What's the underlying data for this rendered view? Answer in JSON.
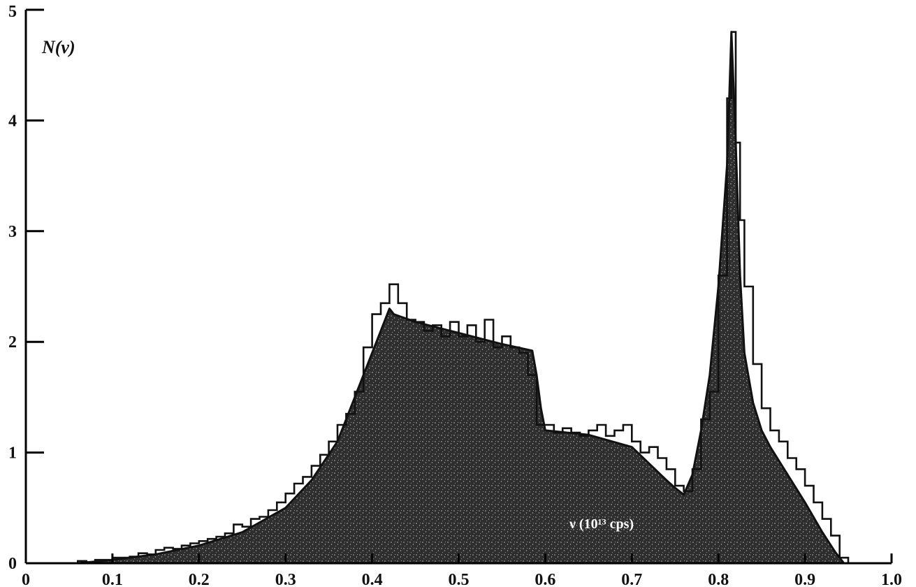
{
  "chart_data": {
    "type": "area",
    "ylabel": "N(ν)",
    "xlabel": "ν (10¹³ cps)",
    "xlim": [
      0,
      1.0
    ],
    "ylim": [
      0,
      5
    ],
    "x_ticks": [
      {
        "value": 0,
        "label": "0"
      },
      {
        "value": 0.1,
        "label": "0.1"
      },
      {
        "value": 0.2,
        "label": "0.2"
      },
      {
        "value": 0.3,
        "label": "0.3"
      },
      {
        "value": 0.4,
        "label": "0.4"
      },
      {
        "value": 0.5,
        "label": "0.5"
      },
      {
        "value": 0.6,
        "label": "0.6"
      },
      {
        "value": 0.7,
        "label": "0.7"
      },
      {
        "value": 0.8,
        "label": "0.8"
      },
      {
        "value": 0.9,
        "label": "0.9"
      },
      {
        "value": 1.0,
        "label": "1.0"
      }
    ],
    "y_ticks": [
      {
        "value": 0,
        "label": "0"
      },
      {
        "value": 1,
        "label": "1"
      },
      {
        "value": 2,
        "label": "2"
      },
      {
        "value": 3,
        "label": "3"
      },
      {
        "value": 4,
        "label": "4"
      },
      {
        "value": 5,
        "label": "5"
      }
    ],
    "grid": false,
    "series": [
      {
        "kind": "smooth-curve-filled",
        "fill": "#3a3a3a",
        "x": [
          0.06,
          0.1,
          0.15,
          0.2,
          0.25,
          0.3,
          0.33,
          0.36,
          0.38,
          0.4,
          0.41,
          0.42,
          0.425,
          0.45,
          0.5,
          0.55,
          0.585,
          0.59,
          0.595,
          0.6,
          0.65,
          0.7,
          0.72,
          0.74,
          0.75,
          0.76,
          0.77,
          0.78,
          0.79,
          0.8,
          0.81,
          0.815,
          0.82,
          0.825,
          0.83,
          0.84,
          0.85,
          0.86,
          0.88,
          0.9,
          0.92,
          0.935,
          0.945
        ],
        "y": [
          0.0,
          0.03,
          0.08,
          0.16,
          0.28,
          0.5,
          0.75,
          1.1,
          1.5,
          1.9,
          2.1,
          2.3,
          2.25,
          2.18,
          2.08,
          1.98,
          1.92,
          1.7,
          1.4,
          1.2,
          1.16,
          1.05,
          0.9,
          0.75,
          0.68,
          0.62,
          0.8,
          1.2,
          1.7,
          2.5,
          3.6,
          4.8,
          3.8,
          2.6,
          1.9,
          1.45,
          1.2,
          1.05,
          0.8,
          0.55,
          0.28,
          0.1,
          0.0
        ]
      },
      {
        "kind": "histogram-step",
        "x": [
          0.06,
          0.07,
          0.08,
          0.09,
          0.1,
          0.11,
          0.12,
          0.13,
          0.14,
          0.15,
          0.16,
          0.17,
          0.18,
          0.19,
          0.2,
          0.21,
          0.22,
          0.23,
          0.24,
          0.25,
          0.26,
          0.27,
          0.28,
          0.29,
          0.3,
          0.31,
          0.32,
          0.33,
          0.34,
          0.35,
          0.36,
          0.37,
          0.38,
          0.39,
          0.4,
          0.41,
          0.42,
          0.43,
          0.44,
          0.45,
          0.46,
          0.47,
          0.48,
          0.49,
          0.5,
          0.51,
          0.52,
          0.53,
          0.54,
          0.55,
          0.56,
          0.57,
          0.58,
          0.59,
          0.6,
          0.61,
          0.62,
          0.63,
          0.64,
          0.65,
          0.66,
          0.67,
          0.68,
          0.69,
          0.7,
          0.71,
          0.72,
          0.73,
          0.74,
          0.75,
          0.76,
          0.77,
          0.78,
          0.79,
          0.8,
          0.81,
          0.815,
          0.82,
          0.825,
          0.83,
          0.84,
          0.85,
          0.86,
          0.87,
          0.88,
          0.89,
          0.9,
          0.91,
          0.92,
          0.93,
          0.94
        ],
        "y": [
          0.02,
          0.01,
          0.03,
          0.03,
          0.05,
          0.05,
          0.06,
          0.09,
          0.08,
          0.12,
          0.14,
          0.13,
          0.16,
          0.18,
          0.2,
          0.22,
          0.24,
          0.27,
          0.35,
          0.33,
          0.4,
          0.42,
          0.48,
          0.55,
          0.63,
          0.72,
          0.78,
          0.88,
          0.98,
          1.1,
          1.25,
          1.35,
          1.55,
          1.95,
          2.25,
          2.35,
          2.52,
          2.35,
          2.2,
          2.18,
          2.1,
          2.15,
          2.05,
          2.18,
          2.05,
          2.15,
          2.0,
          2.2,
          1.95,
          2.05,
          1.95,
          1.9,
          1.7,
          1.25,
          1.25,
          1.18,
          1.22,
          1.18,
          1.15,
          1.2,
          1.25,
          1.15,
          1.2,
          1.25,
          1.1,
          1.0,
          1.05,
          0.95,
          0.85,
          0.7,
          0.65,
          0.85,
          1.3,
          1.55,
          2.6,
          4.2,
          4.8,
          3.8,
          3.1,
          2.5,
          1.8,
          1.4,
          1.2,
          1.1,
          0.95,
          0.85,
          0.7,
          0.55,
          0.4,
          0.25,
          0.05
        ]
      }
    ]
  }
}
